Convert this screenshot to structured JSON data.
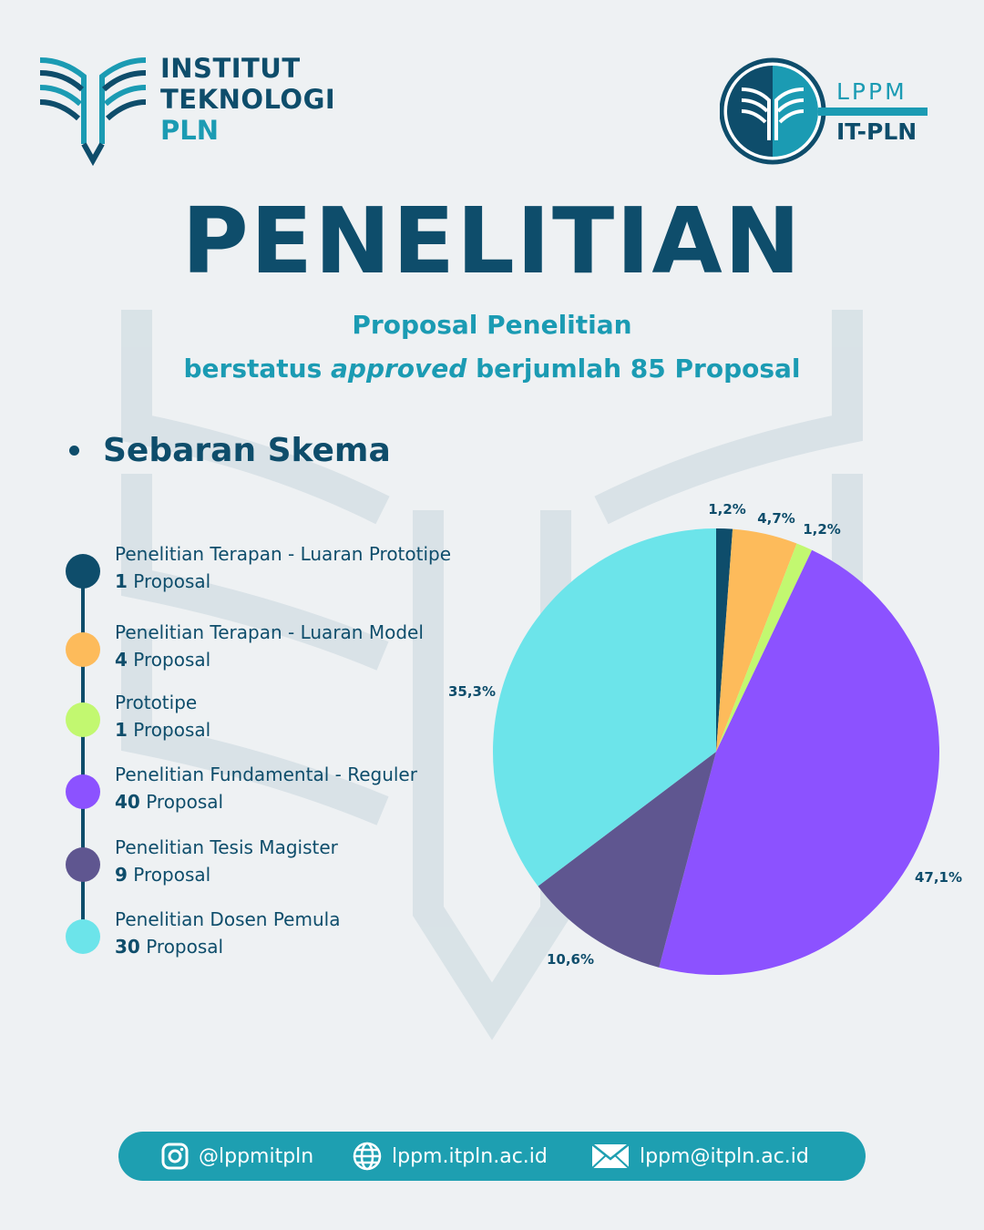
{
  "header": {
    "left_logo_lines": [
      "INSTITUT",
      "TEKNOLOGI",
      "PLN"
    ],
    "right_logo_top": "LPPM",
    "right_logo_bottom": "IT-PLN"
  },
  "title": "PENELITIAN",
  "subtitle_line1": "Proposal Penelitian",
  "subtitle_line2_pre": "berstatus ",
  "subtitle_line2_italic": "approved",
  "subtitle_line2_post": " berjumlah 85 Proposal",
  "section_heading": "Sebaran Skema",
  "legend": [
    {
      "label": "Penelitian Terapan - Luaran Prototipe",
      "count": "1",
      "unit": " Proposal",
      "color": "#0e4d6b"
    },
    {
      "label": "Penelitian Terapan - Luaran Model",
      "count": "4",
      "unit": " Proposal",
      "color": "#fdbb5b"
    },
    {
      "label": "Prototipe",
      "count": "1",
      "unit": " Proposal",
      "color": "#c2f870"
    },
    {
      "label": "Penelitian Fundamental - Reguler",
      "count": "40",
      "unit": " Proposal",
      "color": "#8c52ff"
    },
    {
      "label": "Penelitian Tesis Magister",
      "count": "9",
      "unit": " Proposal",
      "color": "#5f5690"
    },
    {
      "label": "Penelitian Dosen Pemula",
      "count": "30",
      "unit": " Proposal",
      "color": "#6ce4ea"
    }
  ],
  "chart_data": {
    "type": "pie",
    "categories": [
      "Penelitian Terapan - Luaran Prototipe",
      "Penelitian Terapan - Luaran Model",
      "Prototipe",
      "Penelitian Fundamental - Reguler",
      "Penelitian Tesis Magister",
      "Penelitian Dosen Pemula"
    ],
    "values": [
      1,
      4,
      1,
      40,
      9,
      30
    ],
    "labels": [
      "1,2%",
      "4,7%",
      "1,2%",
      "47,1%",
      "10,6%",
      "35,3%"
    ],
    "colors": [
      "#0e4d6b",
      "#fdbb5b",
      "#c2f870",
      "#8c52ff",
      "#5f5690",
      "#6ce4ea"
    ]
  },
  "footer": {
    "instagram_icon": "instagram-icon",
    "instagram": "@lppmitpln",
    "globe_icon": "globe-icon",
    "website": "lppm.itpln.ac.id",
    "mail_icon": "mail-icon",
    "email": "lppm@itpln.ac.id"
  }
}
